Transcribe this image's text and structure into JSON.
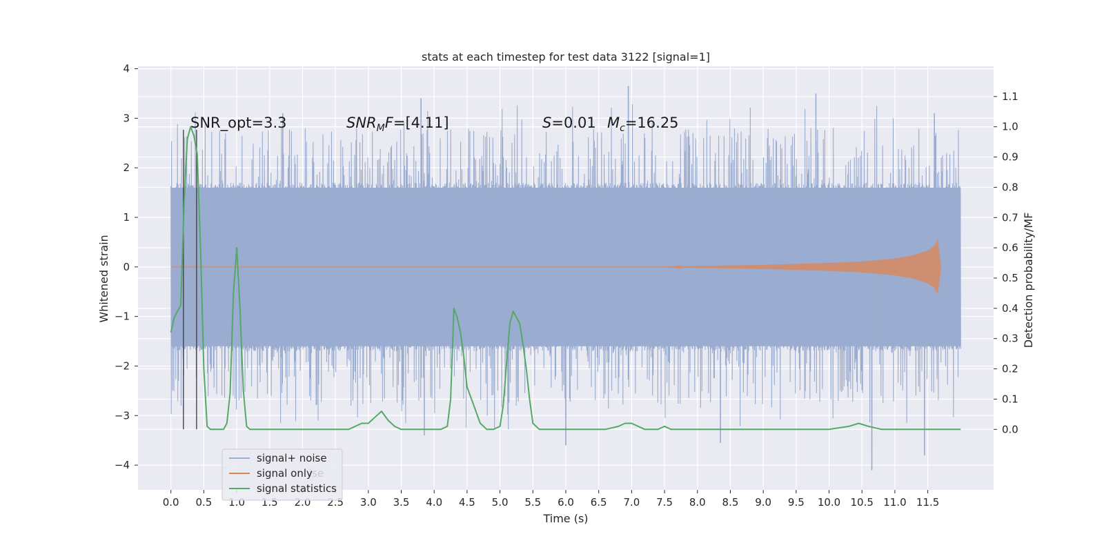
{
  "chart_data": {
    "type": "line",
    "title": "stats at each timestep for test data 3122 [signal=1]",
    "xlabel": "Time (s)",
    "ylabel_left": "Whitened strain",
    "ylabel_right": "Detection probability/MF",
    "xlim": [
      -0.5,
      12.5
    ],
    "ylim_left": [
      -4.5,
      4.05
    ],
    "ylim_right": [
      -0.2,
      1.2
    ],
    "x_ticks": [
      "0.0",
      "0.5",
      "1.0",
      "1.5",
      "2.0",
      "2.5",
      "3.0",
      "3.5",
      "4.0",
      "4.5",
      "5.0",
      "5.5",
      "6.0",
      "6.5",
      "7.0",
      "7.5",
      "8.0",
      "8.5",
      "9.0",
      "9.5",
      "10.0",
      "10.5",
      "11.0",
      "11.5"
    ],
    "y_ticks_left": [
      "−4",
      "−3",
      "−2",
      "−1",
      "0",
      "1",
      "2",
      "3",
      "4"
    ],
    "y_ticks_right": [
      "0.0",
      "0.1",
      "0.2",
      "0.3",
      "0.4",
      "0.5",
      "0.6",
      "0.7",
      "0.8",
      "0.9",
      "1.0",
      "1.1"
    ],
    "grid": true,
    "colors": {
      "background": "#eaeaf2",
      "grid": "#ffffff",
      "signal_noise": "#9aaccf",
      "signal_only": "#dd8452",
      "statistics": "#55a868",
      "vline": "#444444"
    },
    "annotations": {
      "snr_opt": "SNR_opt=3.3",
      "snr_mf": "[4.11]",
      "s_value": "=0.01",
      "mc_value": "=16.25"
    },
    "series": [
      {
        "name": "signal+ noise",
        "axis": "left",
        "description_range": {
          "x_start": 0.0,
          "x_end": 12.0,
          "core_band": [
            -1.6,
            1.6
          ],
          "peak_max": 3.65,
          "trough_min": -4.1
        },
        "notable_peaks": [
          [
            1.7,
            3.1
          ],
          [
            3.8,
            3.4
          ],
          [
            6.95,
            3.65
          ],
          [
            9.8,
            3.5
          ],
          [
            11.6,
            3.1
          ]
        ],
        "notable_troughs": [
          [
            3.85,
            -3.4
          ],
          [
            6.0,
            -3.6
          ],
          [
            8.35,
            -3.55
          ],
          [
            10.65,
            -4.1
          ],
          [
            11.45,
            -3.8
          ]
        ]
      },
      {
        "name": "signal only",
        "axis": "left",
        "envelope": [
          [
            0.0,
            0.0
          ],
          [
            7.5,
            0.0
          ],
          [
            8.0,
            0.02
          ],
          [
            9.0,
            0.04
          ],
          [
            10.0,
            0.08
          ],
          [
            10.5,
            0.11
          ],
          [
            11.0,
            0.17
          ],
          [
            11.3,
            0.24
          ],
          [
            11.5,
            0.33
          ],
          [
            11.6,
            0.42
          ],
          [
            11.65,
            0.55
          ],
          [
            11.7,
            0.0
          ]
        ]
      },
      {
        "name": "signal statistics",
        "axis": "right",
        "x": [
          0.0,
          0.05,
          0.1,
          0.15,
          0.2,
          0.25,
          0.3,
          0.35,
          0.4,
          0.45,
          0.5,
          0.55,
          0.6,
          0.65,
          0.7,
          0.75,
          0.8,
          0.85,
          0.9,
          0.95,
          1.0,
          1.05,
          1.1,
          1.15,
          1.2,
          1.3,
          1.4,
          1.5,
          1.6,
          1.7,
          1.8,
          1.9,
          2.0,
          2.1,
          2.2,
          2.3,
          2.4,
          2.5,
          2.6,
          2.7,
          2.8,
          2.9,
          3.0,
          3.05,
          3.1,
          3.15,
          3.2,
          3.3,
          3.4,
          3.5,
          3.6,
          3.7,
          3.8,
          3.9,
          4.0,
          4.1,
          4.2,
          4.25,
          4.3,
          4.35,
          4.4,
          4.45,
          4.5,
          4.6,
          4.7,
          4.8,
          4.9,
          5.0,
          5.05,
          5.1,
          5.15,
          5.2,
          5.25,
          5.3,
          5.35,
          5.4,
          5.45,
          5.5,
          5.6,
          5.7,
          5.8,
          5.9,
          6.0,
          6.2,
          6.4,
          6.6,
          6.8,
          6.9,
          7.0,
          7.2,
          7.4,
          7.5,
          7.6,
          7.8,
          8.0,
          8.5,
          9.0,
          9.5,
          10.0,
          10.3,
          10.45,
          10.6,
          10.8,
          11.0,
          11.2,
          11.4,
          11.5,
          11.7,
          11.9,
          12.0
        ],
        "y": [
          0.32,
          0.37,
          0.39,
          0.41,
          0.75,
          0.96,
          1.0,
          0.97,
          0.91,
          0.6,
          0.2,
          0.01,
          0.0,
          0.0,
          0.0,
          0.0,
          0.0,
          0.02,
          0.12,
          0.45,
          0.6,
          0.4,
          0.13,
          0.01,
          0.0,
          0.0,
          0.0,
          0.0,
          0.0,
          0.0,
          0.0,
          0.0,
          0.0,
          0.0,
          0.0,
          0.0,
          0.0,
          0.0,
          0.0,
          0.0,
          0.01,
          0.02,
          0.02,
          0.03,
          0.04,
          0.05,
          0.06,
          0.03,
          0.01,
          0.0,
          0.0,
          0.0,
          0.0,
          0.0,
          0.0,
          0.0,
          0.01,
          0.1,
          0.4,
          0.37,
          0.32,
          0.24,
          0.14,
          0.08,
          0.02,
          0.0,
          0.0,
          0.01,
          0.08,
          0.22,
          0.35,
          0.39,
          0.37,
          0.35,
          0.28,
          0.2,
          0.1,
          0.02,
          0.0,
          0.0,
          0.0,
          0.0,
          0.0,
          0.0,
          0.0,
          0.0,
          0.01,
          0.02,
          0.02,
          0.0,
          0.0,
          0.01,
          0.0,
          0.0,
          0.0,
          0.0,
          0.0,
          0.0,
          0.0,
          0.01,
          0.02,
          0.01,
          0.0,
          0.0,
          0.0,
          0.0,
          0.0,
          0.0,
          0.0,
          0.0
        ]
      }
    ],
    "vertical_markers": [
      0.19,
      0.39
    ],
    "vertical_marker_top": 0.99,
    "legend": {
      "placement": "lower-left",
      "entries": [
        "signal+ noise",
        "signal only",
        "signal statistics"
      ],
      "ghost_text": "ise"
    }
  }
}
